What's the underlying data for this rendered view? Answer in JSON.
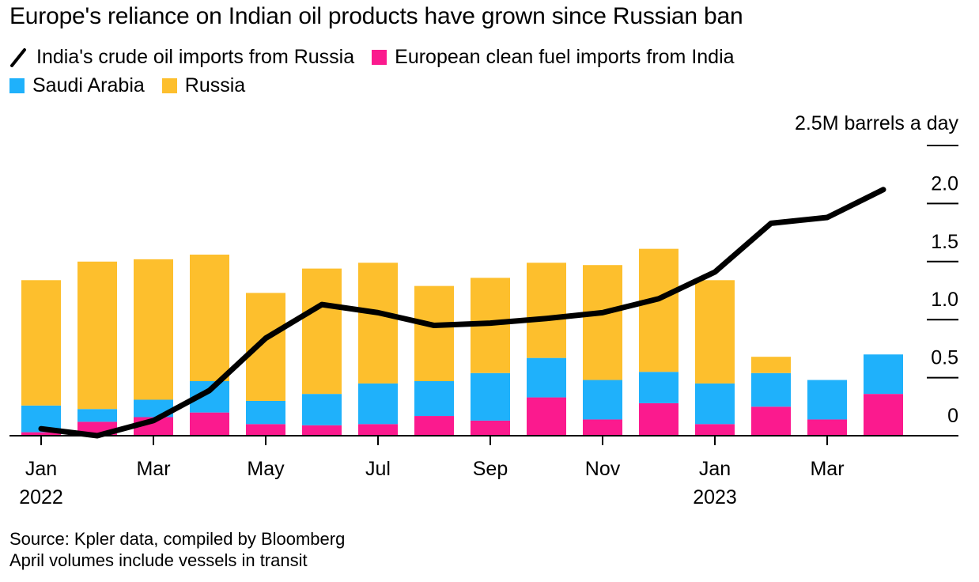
{
  "title": "Europe's reliance on Indian oil products have grown since Russian ban",
  "legend": [
    {
      "label": "India's crude oil imports from Russia",
      "type": "line",
      "color": "#000000",
      "icon": "line-icon"
    },
    {
      "label": "European clean fuel imports from India",
      "type": "bar",
      "color": "#fb1a8e"
    },
    {
      "label": "Saudi Arabia",
      "type": "bar",
      "color": "#1fb1fb"
    },
    {
      "label": "Russia",
      "type": "bar",
      "color": "#fdbf2d"
    }
  ],
  "footer": {
    "source": "Source: Kpler data, compiled by Bloomberg",
    "note": "April volumes include vessels in transit"
  },
  "chart_data": {
    "type": "bar",
    "stacked": true,
    "title": "Europe's reliance on Indian oil products have grown since Russian ban",
    "xlabel": "",
    "ylabel": "M barrels a day",
    "y_unit_label": "2.5M barrels a day",
    "ylim": [
      0,
      2.5
    ],
    "yticks": [
      0,
      0.5,
      1.0,
      1.5,
      2.0,
      2.5
    ],
    "ytick_labels": [
      "0",
      "0.5",
      "1.0",
      "1.5",
      "2.0",
      "2.5M barrels a day"
    ],
    "grid": false,
    "y_axis_position": "right",
    "legend_position": "top-left",
    "categories": [
      "Jan 2022",
      "Feb 2022",
      "Mar 2022",
      "Apr 2022",
      "May 2022",
      "Jun 2022",
      "Jul 2022",
      "Aug 2022",
      "Sep 2022",
      "Oct 2022",
      "Nov 2022",
      "Dec 2022",
      "Jan 2023",
      "Feb 2023",
      "Mar 2023",
      "Apr 2023"
    ],
    "xtick_labels": [
      {
        "index": 0,
        "month": "Jan",
        "year": "2022"
      },
      {
        "index": 2,
        "month": "Mar",
        "year": ""
      },
      {
        "index": 4,
        "month": "May",
        "year": ""
      },
      {
        "index": 6,
        "month": "Jul",
        "year": ""
      },
      {
        "index": 8,
        "month": "Sep",
        "year": ""
      },
      {
        "index": 10,
        "month": "Nov",
        "year": ""
      },
      {
        "index": 12,
        "month": "Jan",
        "year": "2023"
      },
      {
        "index": 14,
        "month": "Mar",
        "year": ""
      }
    ],
    "series": [
      {
        "name": "European clean fuel imports from India",
        "type": "bar",
        "color": "#fb1a8e",
        "values": [
          0.03,
          0.12,
          0.16,
          0.2,
          0.1,
          0.09,
          0.1,
          0.17,
          0.13,
          0.33,
          0.14,
          0.28,
          0.1,
          0.25,
          0.14,
          0.36
        ]
      },
      {
        "name": "Saudi Arabia",
        "type": "bar",
        "color": "#1fb1fb",
        "values": [
          0.23,
          0.11,
          0.15,
          0.27,
          0.2,
          0.27,
          0.35,
          0.3,
          0.41,
          0.34,
          0.34,
          0.27,
          0.35,
          0.29,
          0.34,
          0.34
        ]
      },
      {
        "name": "Russia",
        "type": "bar",
        "color": "#fdbf2d",
        "values": [
          1.08,
          1.27,
          1.21,
          1.09,
          0.93,
          1.08,
          1.04,
          0.82,
          0.82,
          0.82,
          0.99,
          1.06,
          0.89,
          0.14,
          0.0,
          0.0
        ]
      },
      {
        "name": "India's crude oil imports from Russia",
        "type": "line",
        "color": "#000000",
        "values": [
          0.06,
          0.0,
          0.13,
          0.39,
          0.84,
          1.13,
          1.06,
          0.95,
          0.97,
          1.01,
          1.06,
          1.18,
          1.41,
          1.83,
          1.88,
          2.12
        ]
      }
    ]
  }
}
